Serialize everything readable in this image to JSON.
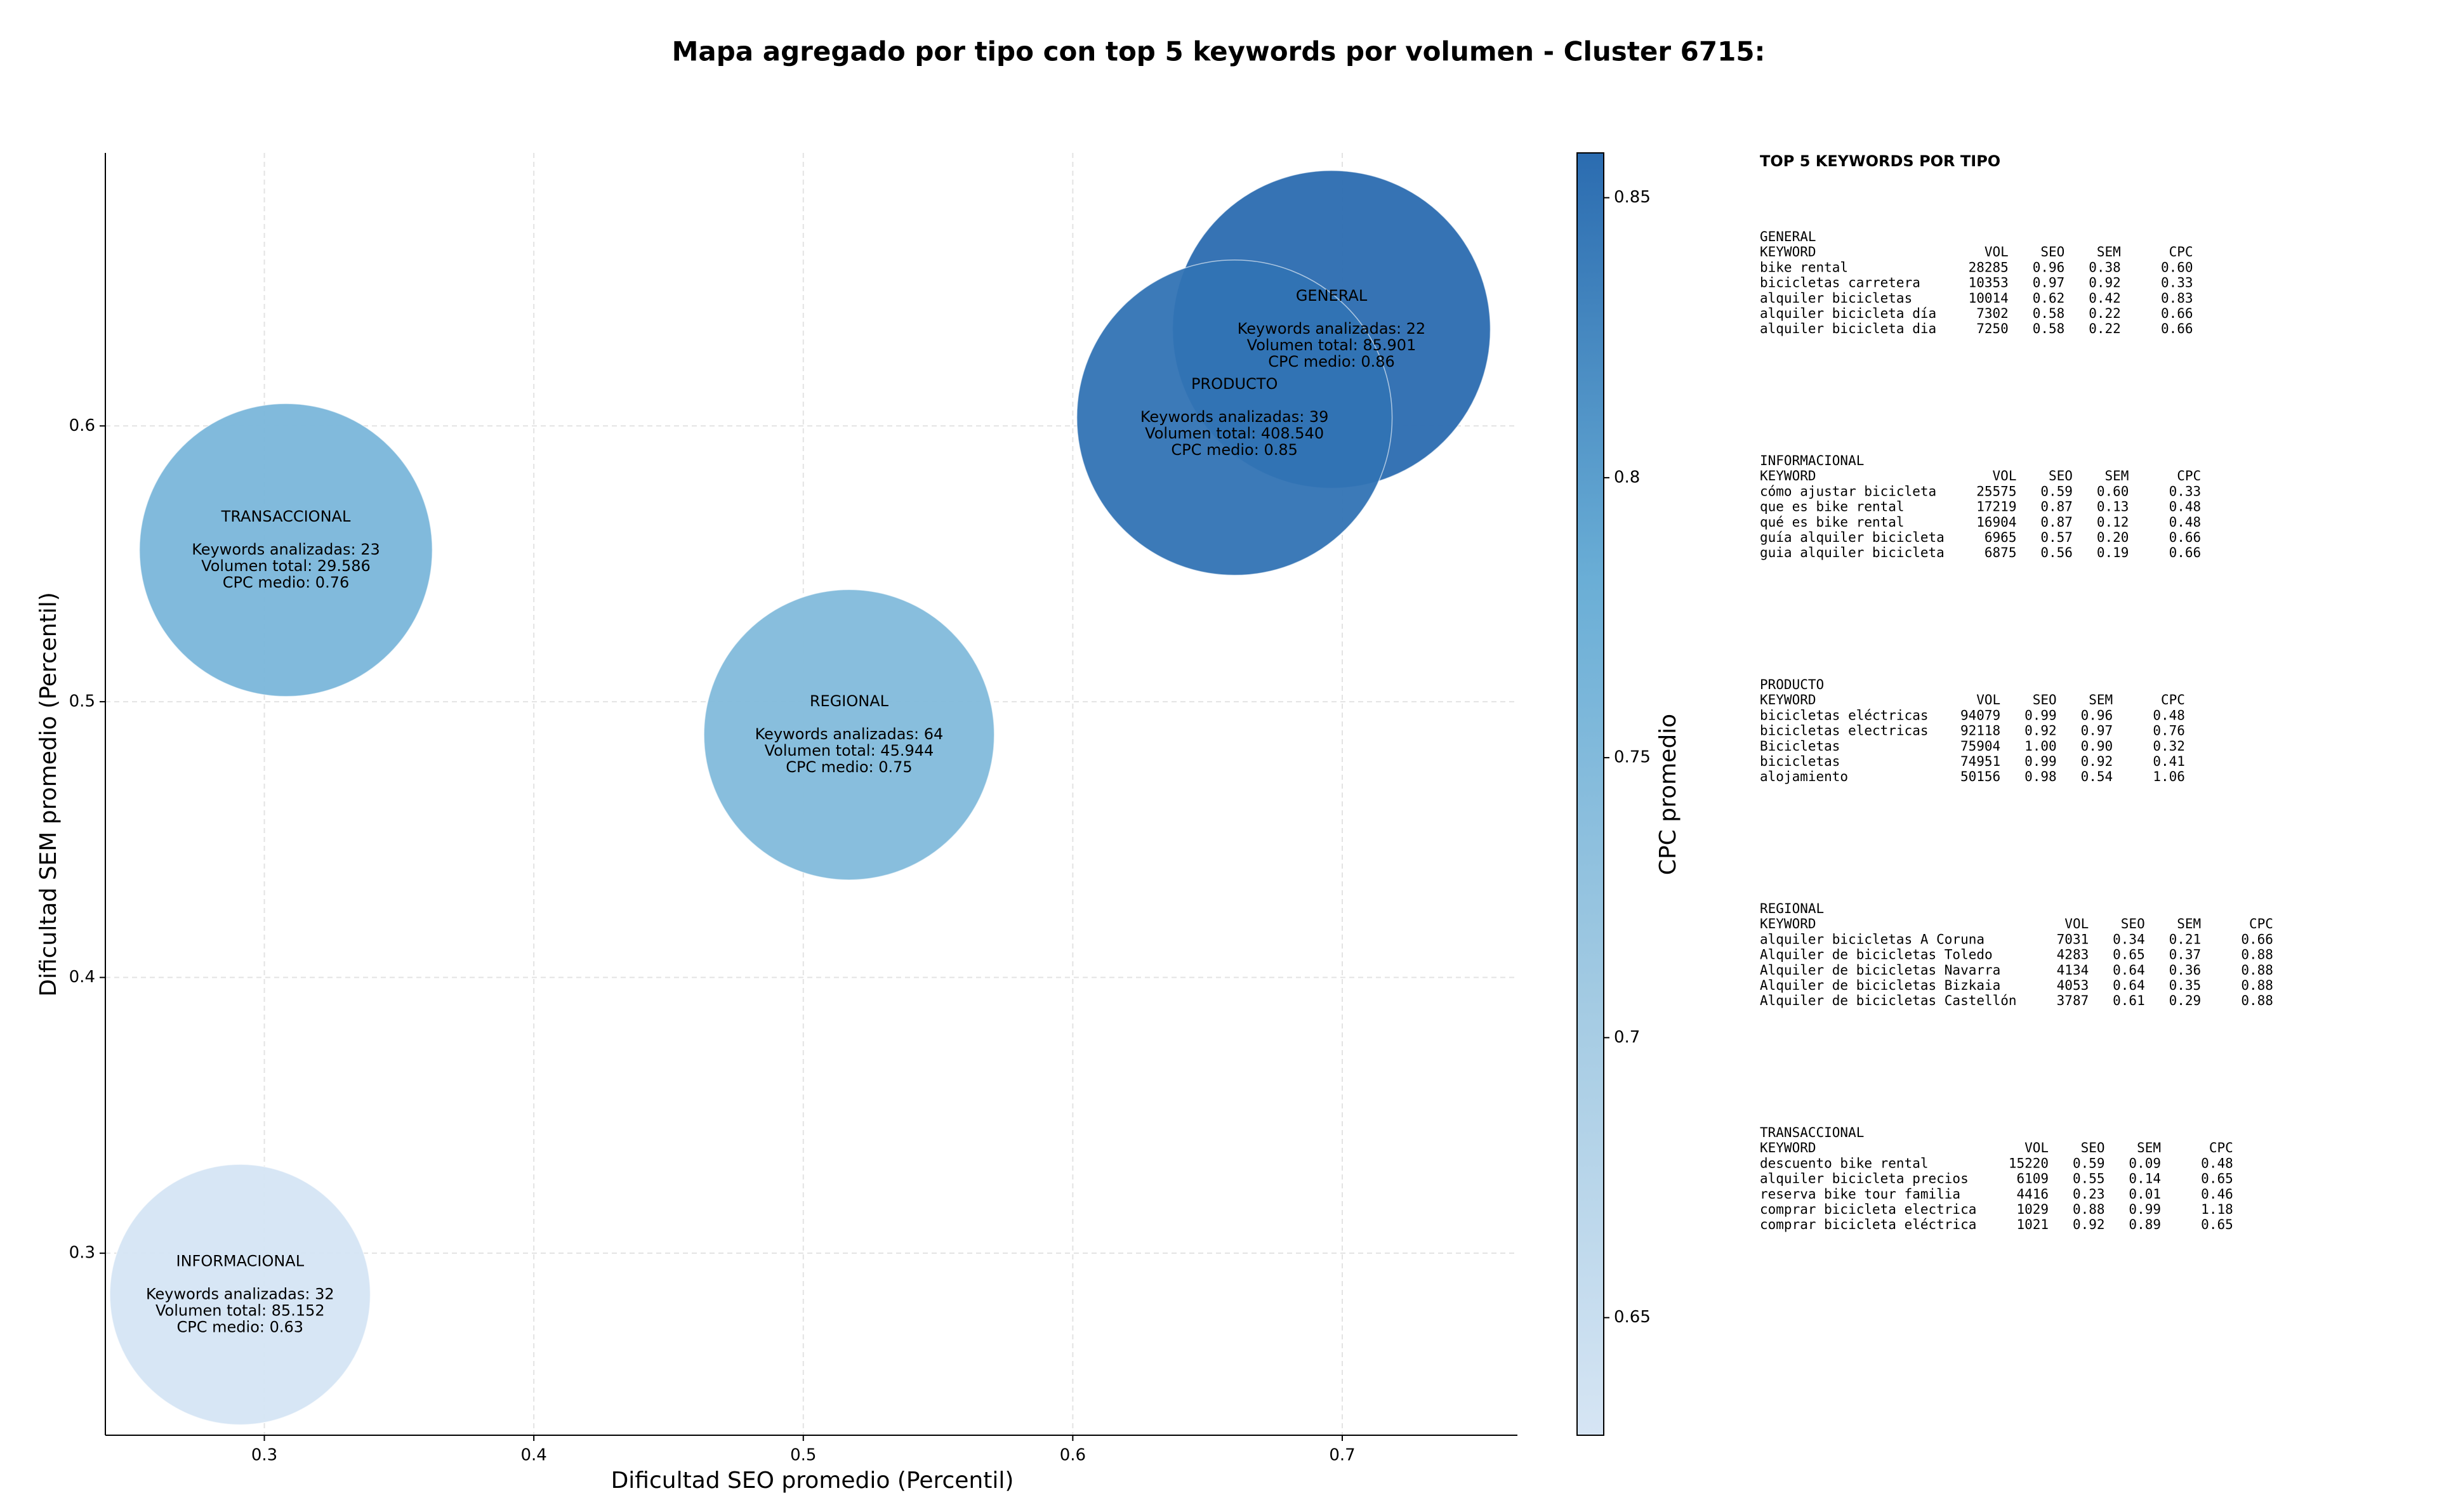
{
  "chart_data": {
    "type": "bubble",
    "title": "Mapa agregado por tipo con top 5 keywords por volumen - Cluster 6715:",
    "x_label": "Dificultad SEO promedio (Percentil)",
    "y_label": "Dificultad SEM promedio (Percentil)",
    "xlim": [
      0.241,
      0.765
    ],
    "ylim": [
      0.234,
      0.699
    ],
    "xticks": [
      0.3,
      0.4,
      0.5,
      0.6,
      0.7
    ],
    "yticks": [
      0.3,
      0.4,
      0.5,
      0.6
    ],
    "grid": true,
    "colorbar": {
      "label": "CPC promedio",
      "lim": [
        0.629,
        0.858
      ],
      "ticks": [
        0.65,
        0.7,
        0.75,
        0.8,
        0.85
      ],
      "colormap": [
        "#d6e5f4",
        "#a4cbe3",
        "#6aaed6",
        "#2b6cb0"
      ]
    },
    "points": [
      {
        "name": "GENERAL",
        "x": 0.696,
        "y": 0.635,
        "cpc": 0.86,
        "lines": [
          "Keywords analizadas: 22",
          "Volumen total: 85.901",
          "CPC medio: 0.86"
        ]
      },
      {
        "name": "PRODUCTO",
        "x": 0.66,
        "y": 0.603,
        "cpc": 0.85,
        "lines": [
          "Keywords analizadas: 39",
          "Volumen total: 408.540",
          "CPC medio: 0.85"
        ]
      },
      {
        "name": "TRANSACCIONAL",
        "x": 0.308,
        "y": 0.555,
        "cpc": 0.76,
        "lines": [
          "Keywords analizadas: 23",
          "Volumen total: 29.586",
          "CPC medio: 0.76"
        ]
      },
      {
        "name": "REGIONAL",
        "x": 0.517,
        "y": 0.488,
        "cpc": 0.75,
        "lines": [
          "Keywords analizadas: 64",
          "Volumen total: 45.944",
          "CPC medio: 0.75"
        ]
      },
      {
        "name": "INFORMACIONAL",
        "x": 0.291,
        "y": 0.285,
        "cpc": 0.63,
        "lines": [
          "Keywords analizadas: 32",
          "Volumen total: 85.152",
          "CPC medio: 0.63"
        ]
      }
    ]
  },
  "panel": {
    "title": "TOP 5 KEYWORDS POR TIPO",
    "header": [
      "KEYWORD",
      "VOL",
      "SEO",
      "SEM",
      "CPC"
    ],
    "sections": [
      {
        "name": "GENERAL",
        "rows": [
          [
            "bike rental",
            "28285",
            "0.96",
            "0.38",
            "0.60"
          ],
          [
            "bicicletas carretera",
            "10353",
            "0.97",
            "0.92",
            "0.33"
          ],
          [
            "alquiler bicicletas",
            "10014",
            "0.62",
            "0.42",
            "0.83"
          ],
          [
            "alquiler bicicleta día",
            "7302",
            "0.58",
            "0.22",
            "0.66"
          ],
          [
            "alquiler bicicleta dia",
            "7250",
            "0.58",
            "0.22",
            "0.66"
          ]
        ]
      },
      {
        "name": "INFORMACIONAL",
        "rows": [
          [
            "cómo ajustar bicicleta",
            "25575",
            "0.59",
            "0.60",
            "0.33"
          ],
          [
            "que es bike rental",
            "17219",
            "0.87",
            "0.13",
            "0.48"
          ],
          [
            "qué es bike rental",
            "16904",
            "0.87",
            "0.12",
            "0.48"
          ],
          [
            "guía alquiler bicicleta",
            "6965",
            "0.57",
            "0.20",
            "0.66"
          ],
          [
            "guia alquiler bicicleta",
            "6875",
            "0.56",
            "0.19",
            "0.66"
          ]
        ]
      },
      {
        "name": "PRODUCTO",
        "rows": [
          [
            "bicicletas eléctricas",
            "94079",
            "0.99",
            "0.96",
            "0.48"
          ],
          [
            "bicicletas electricas",
            "92118",
            "0.92",
            "0.97",
            "0.76"
          ],
          [
            "Bicicletas",
            "75904",
            "1.00",
            "0.90",
            "0.32"
          ],
          [
            "bicicletas",
            "74951",
            "0.99",
            "0.92",
            "0.41"
          ],
          [
            "alojamiento",
            "50156",
            "0.98",
            "0.54",
            "1.06"
          ]
        ]
      },
      {
        "name": "REGIONAL",
        "rows": [
          [
            "alquiler bicicletas A Coruna",
            "7031",
            "0.34",
            "0.21",
            "0.66"
          ],
          [
            "Alquiler de bicicletas Toledo",
            "4283",
            "0.65",
            "0.37",
            "0.88"
          ],
          [
            "Alquiler de bicicletas Navarra",
            "4134",
            "0.64",
            "0.36",
            "0.88"
          ],
          [
            "Alquiler de bicicletas Bizkaia",
            "4053",
            "0.64",
            "0.35",
            "0.88"
          ],
          [
            "Alquiler de bicicletas Castellón",
            "3787",
            "0.61",
            "0.29",
            "0.88"
          ]
        ]
      },
      {
        "name": "TRANSACCIONAL",
        "rows": [
          [
            "descuento bike rental",
            "15220",
            "0.59",
            "0.09",
            "0.48"
          ],
          [
            "alquiler bicicleta precios",
            "6109",
            "0.55",
            "0.14",
            "0.65"
          ],
          [
            "reserva bike tour familia",
            "4416",
            "0.23",
            "0.01",
            "0.46"
          ],
          [
            "comprar bicicleta electrica",
            "1029",
            "0.88",
            "0.99",
            "1.18"
          ],
          [
            "comprar bicicleta eléctrica",
            "1021",
            "0.92",
            "0.89",
            "0.65"
          ]
        ]
      }
    ]
  }
}
